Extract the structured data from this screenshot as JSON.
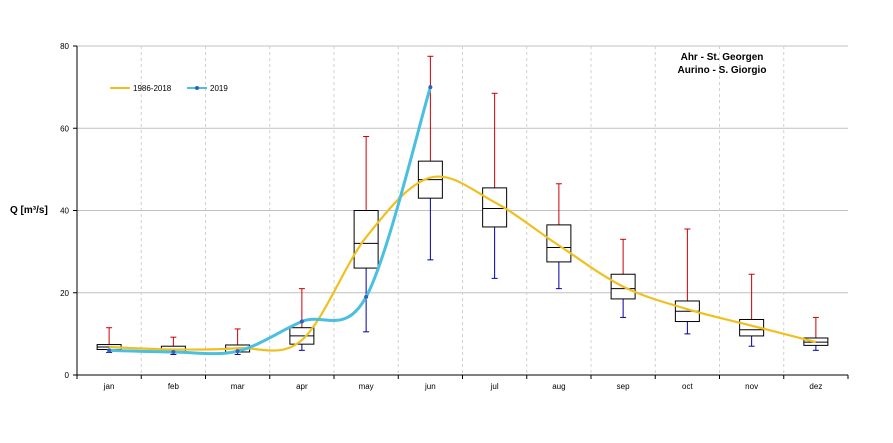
{
  "chart_data": {
    "type": "boxplot-line",
    "title_lines": [
      "Ahr - St. Georgen",
      "Aurino - S. Giorgio"
    ],
    "ylabel": "Q [m³/s]",
    "ylim": [
      0,
      80
    ],
    "yticks": [
      0,
      20,
      40,
      60,
      80
    ],
    "grid": true,
    "legend_position": "top-left",
    "categories": [
      "jan",
      "feb",
      "mar",
      "apr",
      "may",
      "jun",
      "jul",
      "aug",
      "sep",
      "oct",
      "nov",
      "dez"
    ],
    "boxes": [
      {
        "min": 5.5,
        "q1": 6.2,
        "median": 6.8,
        "q3": 7.4,
        "max": 11.5
      },
      {
        "min": 5.0,
        "q1": 5.5,
        "median": 6.2,
        "q3": 7.0,
        "max": 9.2
      },
      {
        "min": 5.0,
        "q1": 5.6,
        "median": 6.5,
        "q3": 7.3,
        "max": 11.2
      },
      {
        "min": 6.0,
        "q1": 7.5,
        "median": 9.5,
        "q3": 11.5,
        "max": 21.0
      },
      {
        "min": 10.5,
        "q1": 26.0,
        "median": 32.0,
        "q3": 40.0,
        "max": 58.0
      },
      {
        "min": 28.0,
        "q1": 43.0,
        "median": 47.5,
        "q3": 52.0,
        "max": 77.5
      },
      {
        "min": 23.5,
        "q1": 36.0,
        "median": 40.5,
        "q3": 45.5,
        "max": 68.5
      },
      {
        "min": 21.0,
        "q1": 27.5,
        "median": 31.0,
        "q3": 36.5,
        "max": 46.5
      },
      {
        "min": 14.0,
        "q1": 18.5,
        "median": 21.0,
        "q3": 24.5,
        "max": 33.0
      },
      {
        "min": 10.0,
        "q1": 13.0,
        "median": 15.5,
        "q3": 18.0,
        "max": 35.5
      },
      {
        "min": 7.0,
        "q1": 9.5,
        "median": 11.0,
        "q3": 13.5,
        "max": 24.5
      },
      {
        "min": 6.0,
        "q1": 7.2,
        "median": 8.0,
        "q3": 9.0,
        "max": 14.0
      }
    ],
    "series": [
      {
        "name": "1986-2018",
        "color": "#f0c020",
        "values": [
          6.8,
          6.2,
          6.5,
          8.5,
          33.5,
          48.0,
          42.0,
          31.5,
          21.5,
          16.0,
          12.0,
          8.0
        ]
      },
      {
        "name": "2019",
        "color": "#4bbfe0",
        "marker_color": "#3060c0",
        "values": [
          6.0,
          5.6,
          5.8,
          13.0,
          19.0,
          70.0
        ]
      }
    ],
    "colors": {
      "whisker_upper": "#cc0000",
      "whisker_lower": "#0000aa",
      "box_edge": "#000000",
      "grid": "#c0c0c0"
    }
  }
}
